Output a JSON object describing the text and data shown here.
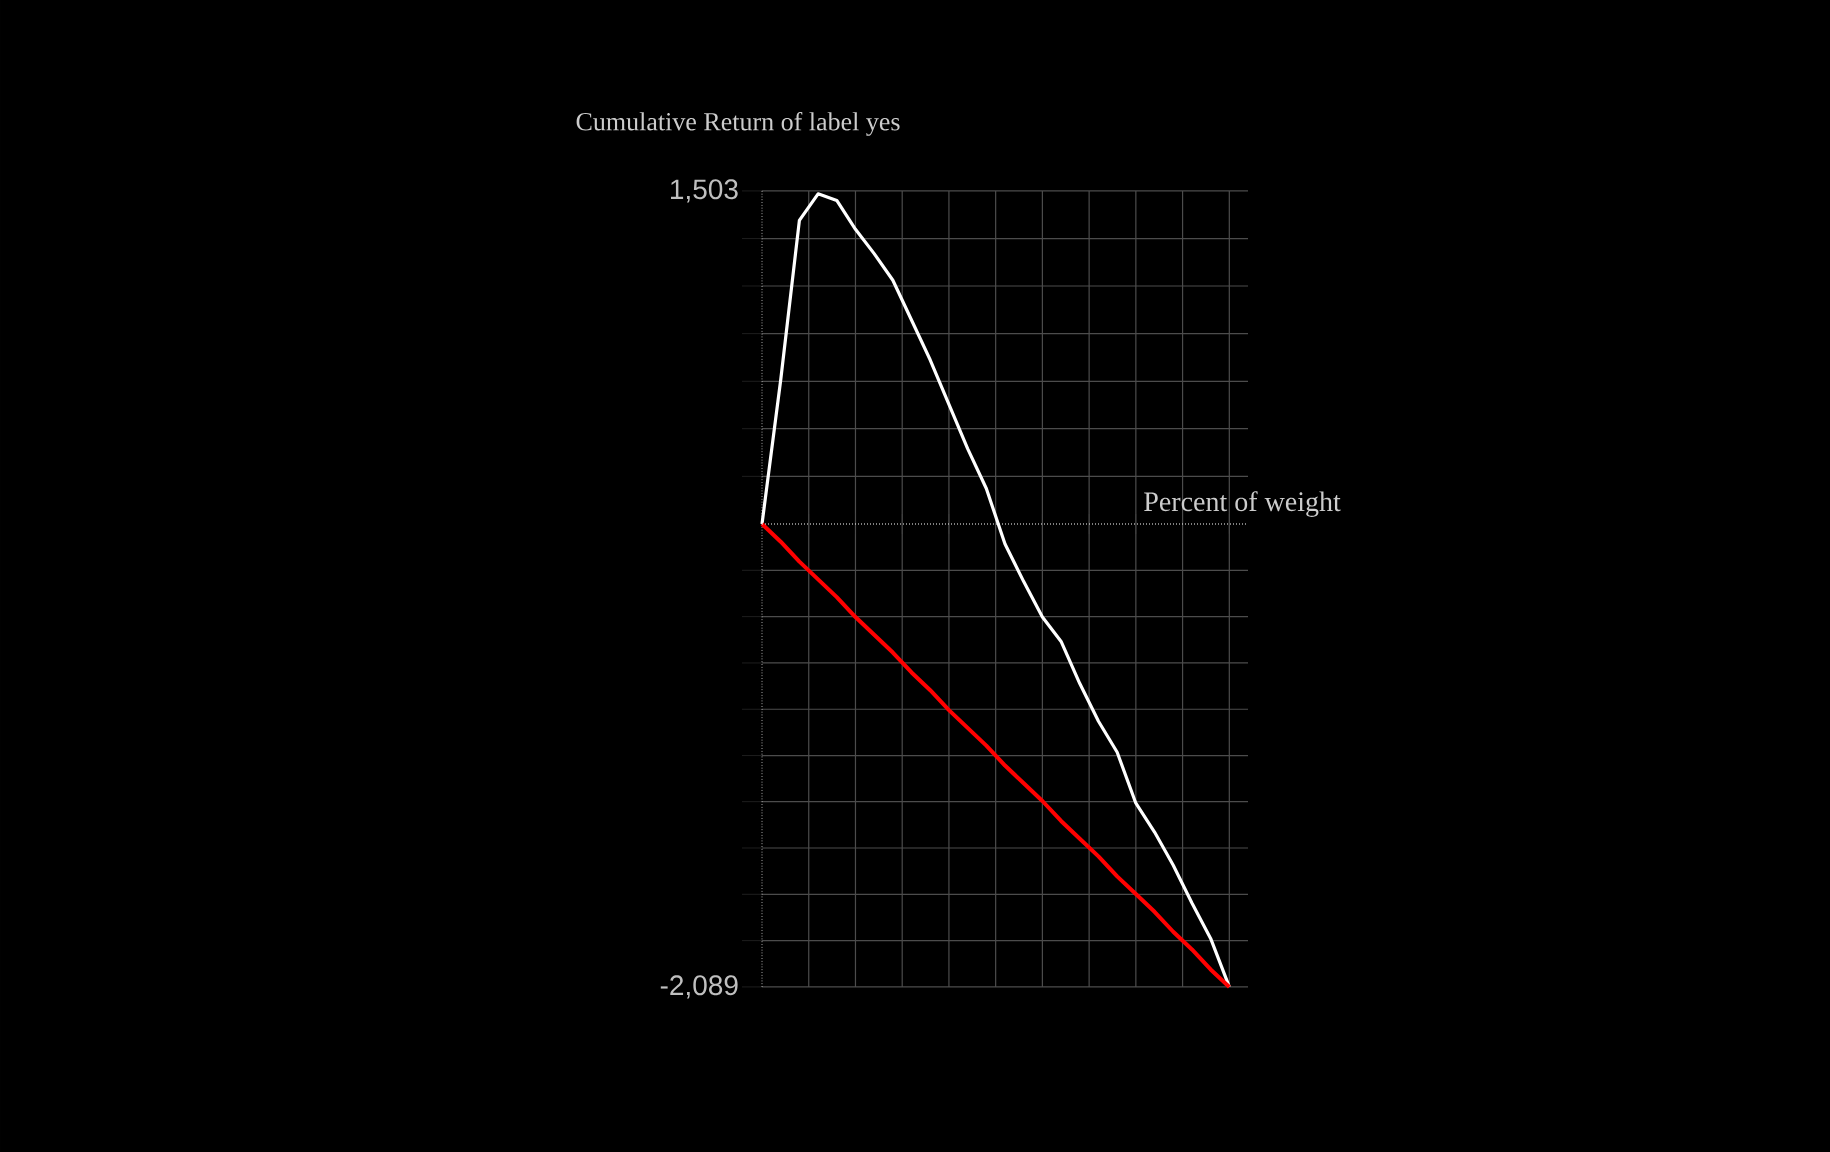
{
  "chart_data": {
    "type": "line",
    "ylabel": "Cumulative Return of label yes",
    "xlabel": "Percent of weight",
    "categories": [
      null,
      null,
      null,
      null,
      null,
      null,
      null,
      null,
      null,
      null,
      null,
      null,
      null,
      null,
      null,
      null,
      null,
      null,
      null,
      null,
      null,
      null,
      null,
      null,
      null,
      null
    ],
    "series": [
      {
        "color": "#ffffff",
        "values": [
          0,
          650,
          1370,
          1490,
          1460,
          1330,
          1220,
          1100,
          920,
          740,
          540,
          340,
          160,
          -90,
          -260,
          -420,
          -530,
          -720,
          -890,
          -1030,
          -1260,
          -1390,
          -1540,
          -1710,
          -1870,
          -2089
        ]
      },
      {
        "color": "#ff0000",
        "values": [
          0,
          -80,
          -170,
          -250,
          -330,
          -420,
          -500,
          -580,
          -670,
          -750,
          -840,
          -920,
          -1000,
          -1090,
          -1170,
          -1250,
          -1340,
          -1420,
          -1500,
          -1590,
          -1670,
          -1750,
          -1840,
          -1920,
          -2010,
          -2089
        ]
      }
    ],
    "ref_lines": [
      {
        "axis": "y",
        "value": 0,
        "color": "#ffffff",
        "line_style": "dotted"
      }
    ],
    "ylim": [
      -2089,
      1503
    ],
    "yticks": [
      {
        "value": -2089,
        "label": "-2,089"
      },
      {
        "value": -1880,
        "label": null
      },
      {
        "value": -1671,
        "label": null
      },
      {
        "value": -1462,
        "label": null
      },
      {
        "value": -1253,
        "label": null
      },
      {
        "value": -1045,
        "label": null
      },
      {
        "value": -836,
        "label": null
      },
      {
        "value": -627,
        "label": null
      },
      {
        "value": -418,
        "label": null
      },
      {
        "value": -209,
        "label": null
      },
      {
        "value": 0,
        "label": null
      },
      {
        "value": 215,
        "label": null
      },
      {
        "value": 430,
        "label": null
      },
      {
        "value": 644,
        "label": null
      },
      {
        "value": 859,
        "label": null
      },
      {
        "value": 1074,
        "label": null
      },
      {
        "value": 1288,
        "label": null
      },
      {
        "value": 1503,
        "label": "1,503"
      }
    ],
    "tick_labels": "y",
    "grid": true,
    "marker": "none",
    "line_style": "solid"
  }
}
